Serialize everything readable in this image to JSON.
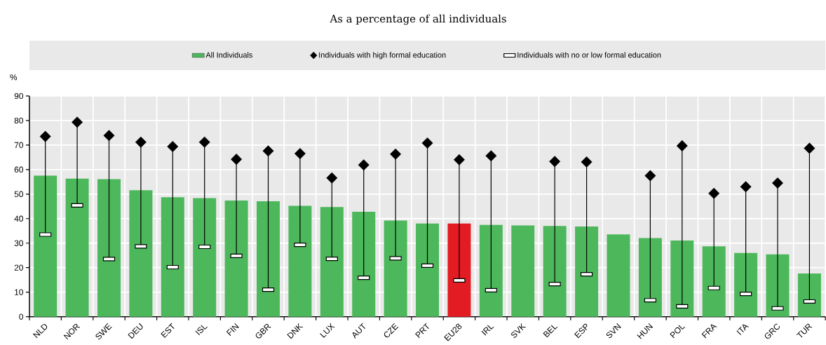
{
  "chart_data": {
    "type": "bar",
    "title": "As a percentage of all individuals",
    "ylabel": "%",
    "categories": [
      "NLD",
      "NOR",
      "SWE",
      "DEU",
      "EST",
      "ISL",
      "FIN",
      "GBR",
      "DNK",
      "LUX",
      "AUT",
      "CZE",
      "PRT",
      "EU28",
      "IRL",
      "SVK",
      "BEL",
      "ESP",
      "SVN",
      "HUN",
      "POL",
      "FRA",
      "ITA",
      "GRC",
      "TUR"
    ],
    "series": [
      {
        "name": "All Individuals",
        "color": "#4cb85b",
        "colors": [
          "#4cb85b",
          "#4cb85b",
          "#4cb85b",
          "#4cb85b",
          "#4cb85b",
          "#4cb85b",
          "#4cb85b",
          "#4cb85b",
          "#4cb85b",
          "#4cb85b",
          "#4cb85b",
          "#4cb85b",
          "#4cb85b",
          "#e31b23",
          "#4cb85b",
          "#4cb85b",
          "#4cb85b",
          "#4cb85b",
          "#4cb85b",
          "#4cb85b",
          "#4cb85b",
          "#4cb85b",
          "#4cb85b",
          "#4cb85b",
          "#4cb85b"
        ],
        "values": [
          57.5,
          56.3,
          56.1,
          51.6,
          48.7,
          48.4,
          47.4,
          47.1,
          45.2,
          44.7,
          42.8,
          39.2,
          38.0,
          38.0,
          37.4,
          37.2,
          37.0,
          36.8,
          33.6,
          32.1,
          31.1,
          28.7,
          26.0,
          25.4,
          17.6
        ]
      },
      {
        "name": "Individuals with high formal education",
        "type": "scatter",
        "marker": "diamond",
        "color": "#000000",
        "values": [
          73.5,
          79.3,
          73.9,
          71.2,
          69.4,
          71.2,
          64.2,
          67.6,
          66.5,
          56.6,
          61.9,
          66.3,
          70.8,
          64.0,
          65.6,
          null,
          63.3,
          63.1,
          null,
          57.5,
          69.7,
          50.3,
          53.0,
          54.5,
          68.7
        ]
      },
      {
        "name": "Individuals with no or low formal education",
        "type": "scatter",
        "color": "#000000",
        "values": [
          33.5,
          45.4,
          23.5,
          28.7,
          20.2,
          28.5,
          24.8,
          11.0,
          29.3,
          23.6,
          15.9,
          23.8,
          20.8,
          14.8,
          10.8,
          null,
          13.3,
          17.3,
          null,
          6.7,
          4.2,
          11.7,
          9.3,
          3.4,
          6.2
        ]
      }
    ],
    "ylim": [
      0,
      90
    ],
    "yticks": [
      0,
      10,
      20,
      30,
      40,
      50,
      60,
      70,
      80,
      90
    ],
    "grid": true,
    "legend": "top"
  }
}
